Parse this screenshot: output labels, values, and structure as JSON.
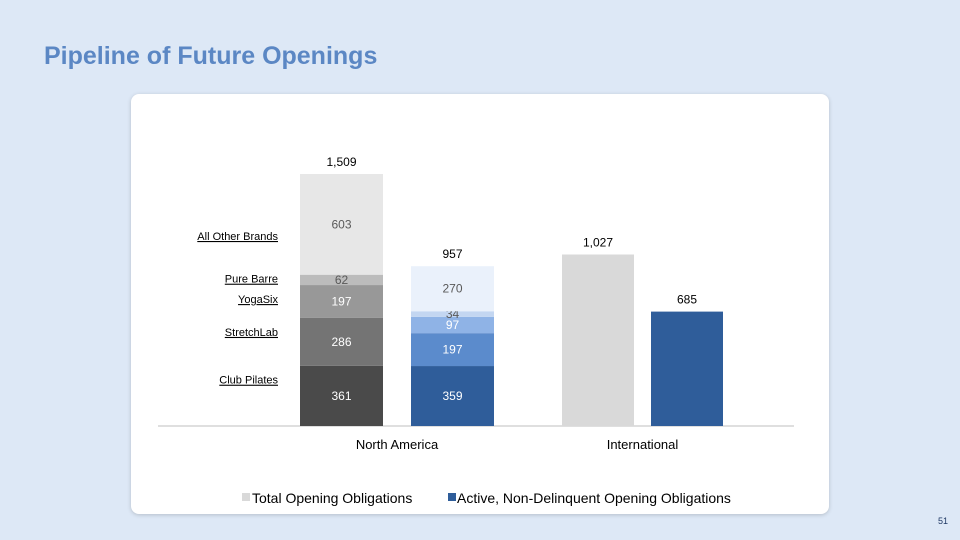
{
  "slide": {
    "title": "Pipeline of Future Openings",
    "page_number": "51"
  },
  "chart_data": {
    "type": "bar",
    "categories": [
      "North America",
      "International"
    ],
    "series": [
      {
        "name": "Total Opening Obligations",
        "color": "#d9d9d9",
        "totals": [
          1509,
          1027
        ],
        "total_labels": [
          "1,509",
          "1,027"
        ]
      },
      {
        "name": "Active, Non-Delinquent Opening Obligations",
        "color": "#2f5d9a",
        "totals": [
          957,
          685
        ],
        "total_labels": [
          "957",
          "685"
        ]
      }
    ],
    "brands": [
      "Club Pilates",
      "StretchLab",
      "YogaSix",
      "Pure Barre",
      "All Other Brands"
    ],
    "north_america_breakdown": {
      "total": [
        {
          "brand": "Club Pilates",
          "value": 361,
          "color": "#4a4a4a"
        },
        {
          "brand": "StretchLab",
          "value": 286,
          "color": "#747474"
        },
        {
          "brand": "YogaSix",
          "value": 197,
          "color": "#989898"
        },
        {
          "brand": "Pure Barre",
          "value": 62,
          "color": "#bcbcbc"
        },
        {
          "brand": "All Other Brands",
          "value": 603,
          "color": "#e7e7e7"
        }
      ],
      "active": [
        {
          "brand": "Club Pilates",
          "value": 359,
          "color": "#2f5d9a"
        },
        {
          "brand": "StretchLab",
          "value": 197,
          "color": "#5b8bcc"
        },
        {
          "brand": "YogaSix",
          "value": 97,
          "color": "#8fb3e6"
        },
        {
          "brand": "Pure Barre",
          "value": 34,
          "color": "#c3d6f1"
        },
        {
          "brand": "All Other Brands",
          "value": 270,
          "color": "#eaf1fb"
        }
      ]
    },
    "legend_position": "bottom",
    "grid": false
  }
}
